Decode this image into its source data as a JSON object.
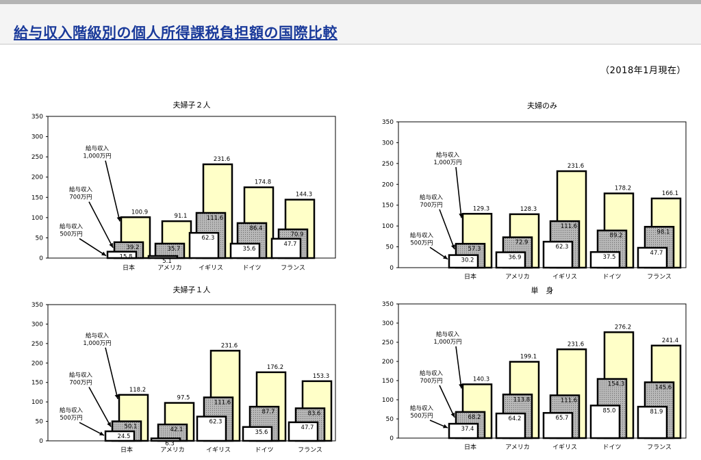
{
  "page": {
    "title": "給与収入階級別の個人所得課税負担額の国際比較",
    "date_note": "（2018年1月現在）"
  },
  "colors": {
    "highest": "#ffffc8",
    "middle": "#b8b8b8",
    "lowest": "#ffffff",
    "border": "#000000"
  },
  "tier_labels": {
    "high": [
      "給与収入",
      "1,000万円"
    ],
    "mid": [
      "給与収入",
      "700万円"
    ],
    "low": [
      "給与収入",
      "500万円"
    ]
  },
  "chart_data": [
    {
      "type": "bar",
      "title": "夫婦子２人",
      "categories": [
        "日本",
        "アメリカ",
        "イギリス",
        "ドイツ",
        "フランス"
      ],
      "ylim": [
        0,
        350
      ],
      "yticks": [
        0,
        50,
        100,
        150,
        200,
        250,
        300,
        350
      ],
      "series": [
        {
          "name": "給与収入 1,000万円",
          "values": [
            100.9,
            91.1,
            231.6,
            174.8,
            144.3
          ]
        },
        {
          "name": "給与収入 700万円",
          "values": [
            39.2,
            35.7,
            111.6,
            86.4,
            70.9
          ]
        },
        {
          "name": "給与収入 500万円",
          "values": [
            15.8,
            5.1,
            62.3,
            35.6,
            47.7
          ]
        }
      ]
    },
    {
      "type": "bar",
      "title": "夫婦のみ",
      "categories": [
        "日本",
        "アメリカ",
        "イギリス",
        "ドイツ",
        "フランス"
      ],
      "ylim": [
        0,
        350
      ],
      "yticks": [
        0,
        50,
        100,
        150,
        200,
        250,
        300,
        350
      ],
      "series": [
        {
          "name": "給与収入 1,000万円",
          "values": [
            129.3,
            128.3,
            231.6,
            178.2,
            166.1
          ]
        },
        {
          "name": "給与収入 700万円",
          "values": [
            57.3,
            72.9,
            111.6,
            89.2,
            98.1
          ]
        },
        {
          "name": "給与収入 500万円",
          "values": [
            30.2,
            36.9,
            62.3,
            37.5,
            47.7
          ]
        }
      ]
    },
    {
      "type": "bar",
      "title": "夫婦子１人",
      "categories": [
        "日本",
        "アメリカ",
        "イギリス",
        "ドイツ",
        "フランス"
      ],
      "ylim": [
        0,
        350
      ],
      "yticks": [
        0,
        50,
        100,
        150,
        200,
        250,
        300,
        350
      ],
      "series": [
        {
          "name": "給与収入 1,000万円",
          "values": [
            118.2,
            97.5,
            231.6,
            176.2,
            153.3
          ]
        },
        {
          "name": "給与収入 700万円",
          "values": [
            50.1,
            42.1,
            111.6,
            87.7,
            83.6
          ]
        },
        {
          "name": "給与収入 500万円",
          "values": [
            24.5,
            6.3,
            62.3,
            35.6,
            47.7
          ]
        }
      ]
    },
    {
      "type": "bar",
      "title": "単　身",
      "categories": [
        "日本",
        "アメリカ",
        "イギリス",
        "ドイツ",
        "フランス"
      ],
      "ylim": [
        0,
        350
      ],
      "yticks": [
        0,
        50,
        100,
        150,
        200,
        250,
        300,
        350
      ],
      "series": [
        {
          "name": "給与収入 1,000万円",
          "values": [
            140.3,
            199.1,
            231.6,
            276.2,
            241.4
          ]
        },
        {
          "name": "給与収入 700万円",
          "values": [
            68.2,
            113.8,
            111.6,
            154.3,
            145.6
          ]
        },
        {
          "name": "給与収入 500万円",
          "values": [
            37.4,
            64.2,
            65.7,
            85.0,
            81.9
          ]
        }
      ]
    }
  ]
}
